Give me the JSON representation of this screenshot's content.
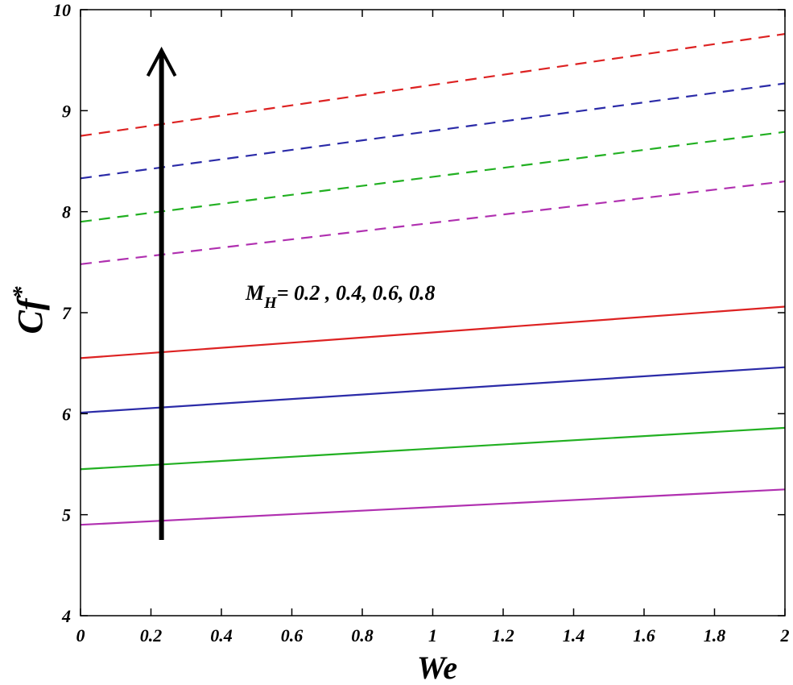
{
  "chart_data": {
    "type": "line",
    "xlabel": "We",
    "ylabel_main": "Cf",
    "ylabel_sup": "*",
    "xlim": [
      0,
      2
    ],
    "ylim": [
      4,
      10
    ],
    "x_ticks": [
      0,
      0.2,
      0.4,
      0.6,
      0.8,
      1,
      1.2,
      1.4,
      1.6,
      1.8,
      2
    ],
    "x_tick_labels": [
      "0",
      "0.2",
      "0.4",
      "0.6",
      "0.8",
      "1",
      "1.2",
      "1.4",
      "1.6",
      "1.8",
      "2"
    ],
    "y_ticks": [
      4,
      5,
      6,
      7,
      8,
      9,
      10
    ],
    "y_tick_labels": [
      "4",
      "5",
      "6",
      "7",
      "8",
      "9",
      "10"
    ],
    "grid": false,
    "annotation": {
      "prefix": "M",
      "subscript": "H",
      "suffix": "= 0.2 , 0.4, 0.6, 0.8"
    },
    "arrow": {
      "x": 0.23,
      "y_start": 4.75,
      "y_end": 9.6,
      "direction": "up"
    },
    "series": [
      {
        "style": "solid",
        "color": "#dd2222",
        "x": [
          0,
          2
        ],
        "values": [
          6.55,
          7.06
        ]
      },
      {
        "style": "solid",
        "color": "#2b2ba8",
        "x": [
          0,
          2
        ],
        "values": [
          6.01,
          6.46
        ]
      },
      {
        "style": "solid",
        "color": "#22b022",
        "x": [
          0,
          2
        ],
        "values": [
          5.45,
          5.86
        ]
      },
      {
        "style": "solid",
        "color": "#b030b0",
        "x": [
          0,
          2
        ],
        "values": [
          4.9,
          5.25
        ]
      },
      {
        "style": "dashed",
        "color": "#dd2222",
        "x": [
          0,
          2
        ],
        "values": [
          8.75,
          9.76
        ]
      },
      {
        "style": "dashed",
        "color": "#2b2ba8",
        "x": [
          0,
          2
        ],
        "values": [
          8.33,
          9.27
        ]
      },
      {
        "style": "dashed",
        "color": "#22b022",
        "x": [
          0,
          2
        ],
        "values": [
          7.9,
          8.79
        ]
      },
      {
        "style": "dashed",
        "color": "#b030b0",
        "x": [
          0,
          2
        ],
        "values": [
          7.48,
          8.3
        ]
      }
    ]
  }
}
